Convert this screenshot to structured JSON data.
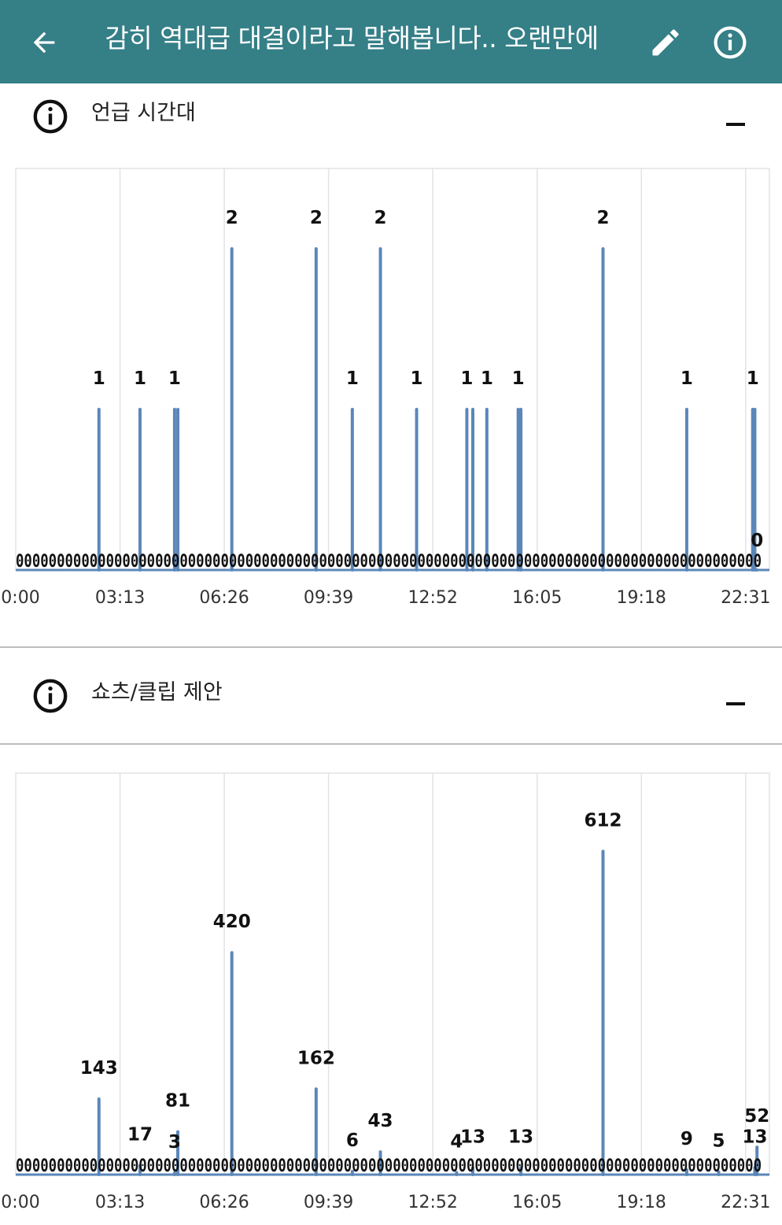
{
  "header": {
    "title": "감히 역대급 대결이라고 말해봅니다.. 오랜만에",
    "back_icon": "arrow-left-icon",
    "edit_icon": "pencil-icon",
    "info_icon": "info-icon",
    "background": "#357f87"
  },
  "sections": [
    {
      "label": "언급 시간대",
      "icon": "info-icon",
      "collapse_icon": "minus-icon"
    },
    {
      "label": "쇼츠/클립 제안",
      "icon": "info-icon",
      "collapse_icon": "minus-icon"
    }
  ],
  "chart_data": [
    {
      "type": "line",
      "title": "",
      "x_tick_labels": [
        "0:00",
        "03:13",
        "06:26",
        "09:39",
        "12:52",
        "16:05",
        "19:18",
        "22:31"
      ],
      "x_range_minutes": [
        0,
        1395
      ],
      "ylim": [
        0,
        2.5
      ],
      "grid": "vertical",
      "color": "#5b87b8",
      "zero_label": "0",
      "baseline_zero_labels": "0000000000000000000000000000000000000000000000000000000000000000000000000000000000000000000",
      "peaks": [
        {
          "x": 154,
          "y": 1,
          "label": "1"
        },
        {
          "x": 230,
          "y": 1,
          "label": "1"
        },
        {
          "x": 294,
          "y": 1,
          "label": "1"
        },
        {
          "x": 300,
          "y": 1,
          "label": ""
        },
        {
          "x": 400,
          "y": 2,
          "label": "2"
        },
        {
          "x": 556,
          "y": 2,
          "label": "2"
        },
        {
          "x": 623,
          "y": 1,
          "label": "1"
        },
        {
          "x": 675,
          "y": 2,
          "label": "2"
        },
        {
          "x": 742,
          "y": 1,
          "label": "1"
        },
        {
          "x": 835,
          "y": 1,
          "label": "1"
        },
        {
          "x": 846,
          "y": 1,
          "label": ""
        },
        {
          "x": 872,
          "y": 1,
          "label": "1"
        },
        {
          "x": 930,
          "y": 1,
          "label": "1"
        },
        {
          "x": 935,
          "y": 1,
          "label": ""
        },
        {
          "x": 1087,
          "y": 2,
          "label": "2"
        },
        {
          "x": 1242,
          "y": 1,
          "label": "1"
        },
        {
          "x": 1364,
          "y": 1,
          "label": "1"
        },
        {
          "x": 1368,
          "y": 1,
          "label": ""
        },
        {
          "x": 1372,
          "y": 0,
          "label": "0"
        }
      ]
    },
    {
      "type": "line",
      "title": "",
      "x_tick_labels": [
        "0:00",
        "03:13",
        "06:26",
        "09:39",
        "12:52",
        "16:05",
        "19:18",
        "22:31"
      ],
      "x_range_minutes": [
        0,
        1395
      ],
      "ylim": [
        0,
        760
      ],
      "grid": "vertical",
      "color": "#5b87b8",
      "baseline_zero_labels": "0000000000000000000000000000000000000000000000000000000000000000000000000000000000000000000",
      "peaks": [
        {
          "x": 154,
          "y": 143,
          "label": "143"
        },
        {
          "x": 230,
          "y": 17,
          "label": "17"
        },
        {
          "x": 294,
          "y": 3,
          "label": "3"
        },
        {
          "x": 300,
          "y": 81,
          "label": "81"
        },
        {
          "x": 400,
          "y": 420,
          "label": "420"
        },
        {
          "x": 556,
          "y": 162,
          "label": "162"
        },
        {
          "x": 623,
          "y": 6,
          "label": "6"
        },
        {
          "x": 675,
          "y": 43,
          "label": "43"
        },
        {
          "x": 816,
          "y": 4,
          "label": "4"
        },
        {
          "x": 846,
          "y": 13,
          "label": "13"
        },
        {
          "x": 935,
          "y": 13,
          "label": "13"
        },
        {
          "x": 1087,
          "y": 612,
          "label": "612"
        },
        {
          "x": 1242,
          "y": 9,
          "label": "9"
        },
        {
          "x": 1301,
          "y": 5,
          "label": "5"
        },
        {
          "x": 1368,
          "y": 13,
          "label": "13"
        },
        {
          "x": 1372,
          "y": 52,
          "label": "52"
        }
      ]
    }
  ]
}
